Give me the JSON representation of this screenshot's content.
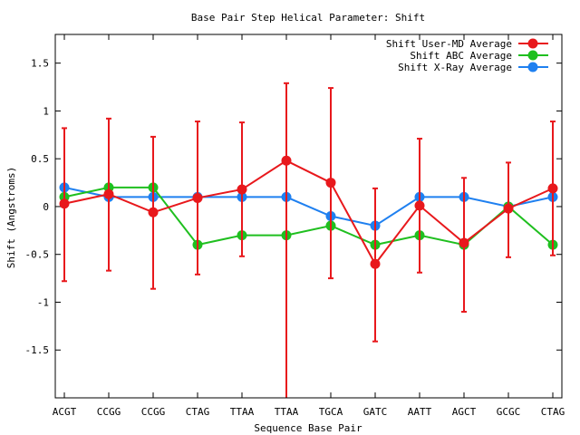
{
  "chart_data": {
    "type": "line",
    "title": "Base Pair Step Helical Parameter: Shift",
    "xlabel": "Sequence Base Pair",
    "ylabel": "Shift (Angstroms)",
    "ylim": [
      -2,
      1.8
    ],
    "yticks": [
      -1.5,
      -1,
      -0.5,
      0,
      0.5,
      1,
      1.5
    ],
    "ytick_labels": [
      "-1.5",
      "-1",
      "-0.5",
      "0",
      "0.5",
      "1",
      "1.5"
    ],
    "categories": [
      "ACGT",
      "CCGG",
      "CCGG",
      "CTAG",
      "TTAA",
      "TTAA",
      "TGCA",
      "GATC",
      "AATT",
      "AGCT",
      "GCGC",
      "CTAG"
    ],
    "legend_position": "top-right",
    "series": [
      {
        "name": "Shift User-MD Average",
        "color": "#e8181c",
        "values": [
          0.03,
          0.13,
          -0.06,
          0.09,
          0.18,
          0.48,
          0.25,
          -0.6,
          0.01,
          -0.38,
          -0.02,
          0.19
        ],
        "error_low": [
          -0.78,
          -0.67,
          -0.86,
          -0.71,
          -0.52,
          null,
          -0.75,
          -1.41,
          -0.69,
          -1.1,
          -0.53,
          -0.51
        ],
        "error_high": [
          0.82,
          0.92,
          0.73,
          0.89,
          0.88,
          1.29,
          1.24,
          0.19,
          0.71,
          0.3,
          0.46,
          0.89
        ]
      },
      {
        "name": "Shift ABC Average",
        "color": "#1fbf1f",
        "values": [
          0.1,
          0.2,
          0.2,
          -0.4,
          -0.3,
          -0.3,
          -0.2,
          -0.4,
          -0.3,
          -0.4,
          0.0,
          -0.4
        ]
      },
      {
        "name": "Shift X-Ray Average",
        "color": "#1f80f0",
        "values": [
          0.2,
          0.1,
          0.1,
          0.1,
          0.1,
          0.1,
          -0.1,
          -0.2,
          0.1,
          0.1,
          0.0,
          0.1
        ]
      }
    ]
  }
}
